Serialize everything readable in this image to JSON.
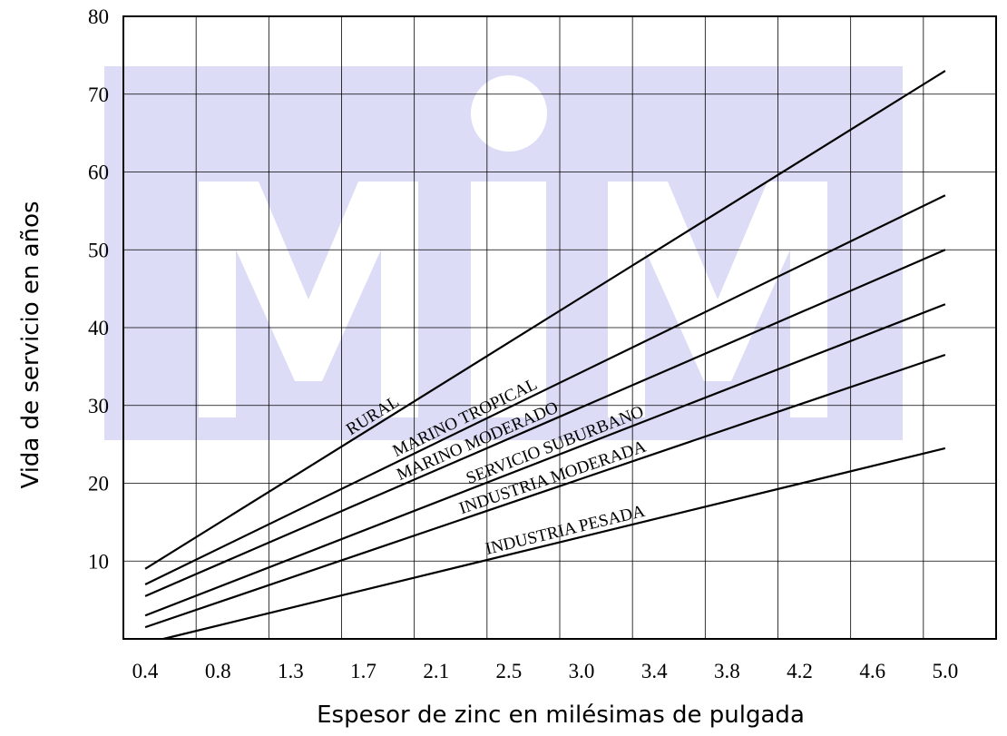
{
  "chart_data": {
    "type": "line",
    "xlabel": "Espesor de zinc en milésimas de pulgada",
    "ylabel": "Vida de servicio en años",
    "x_ticks": [
      "0.4",
      "0.8",
      "1.3",
      "1.7",
      "2.1",
      "2.5",
      "3.0",
      "3.4",
      "3.8",
      "4.2",
      "4.6",
      "5.0"
    ],
    "y_ticks": [
      "10",
      "20",
      "30",
      "40",
      "50",
      "60",
      "70",
      "80"
    ],
    "ylim": [
      0,
      80
    ],
    "grid": true,
    "legend": "none",
    "watermark": "MM logo (light blue)",
    "colors": {
      "line": "#000000",
      "grid": "#000000",
      "watermark": "#dcdcf6"
    },
    "series": [
      {
        "name": "RURAL",
        "x": [
          "0.4",
          "5.0"
        ],
        "values": [
          9,
          73
        ]
      },
      {
        "name": "MARINO TROPICAL",
        "x": [
          "0.4",
          "5.0"
        ],
        "values": [
          7,
          57
        ]
      },
      {
        "name": "MARINO MODERADO",
        "x": [
          "0.4",
          "5.0"
        ],
        "values": [
          5.5,
          50
        ]
      },
      {
        "name": "SERVICIO SUBURBANO",
        "x": [
          "0.4",
          "5.0"
        ],
        "values": [
          3,
          43
        ]
      },
      {
        "name": "INDUSTRIA MODERADA",
        "x": [
          "0.4",
          "5.0"
        ],
        "values": [
          1.5,
          36.5
        ]
      },
      {
        "name": "INDUSTRIA PESADA",
        "x": [
          "0.5",
          "5.0"
        ],
        "values": [
          0,
          24.5
        ]
      }
    ]
  }
}
